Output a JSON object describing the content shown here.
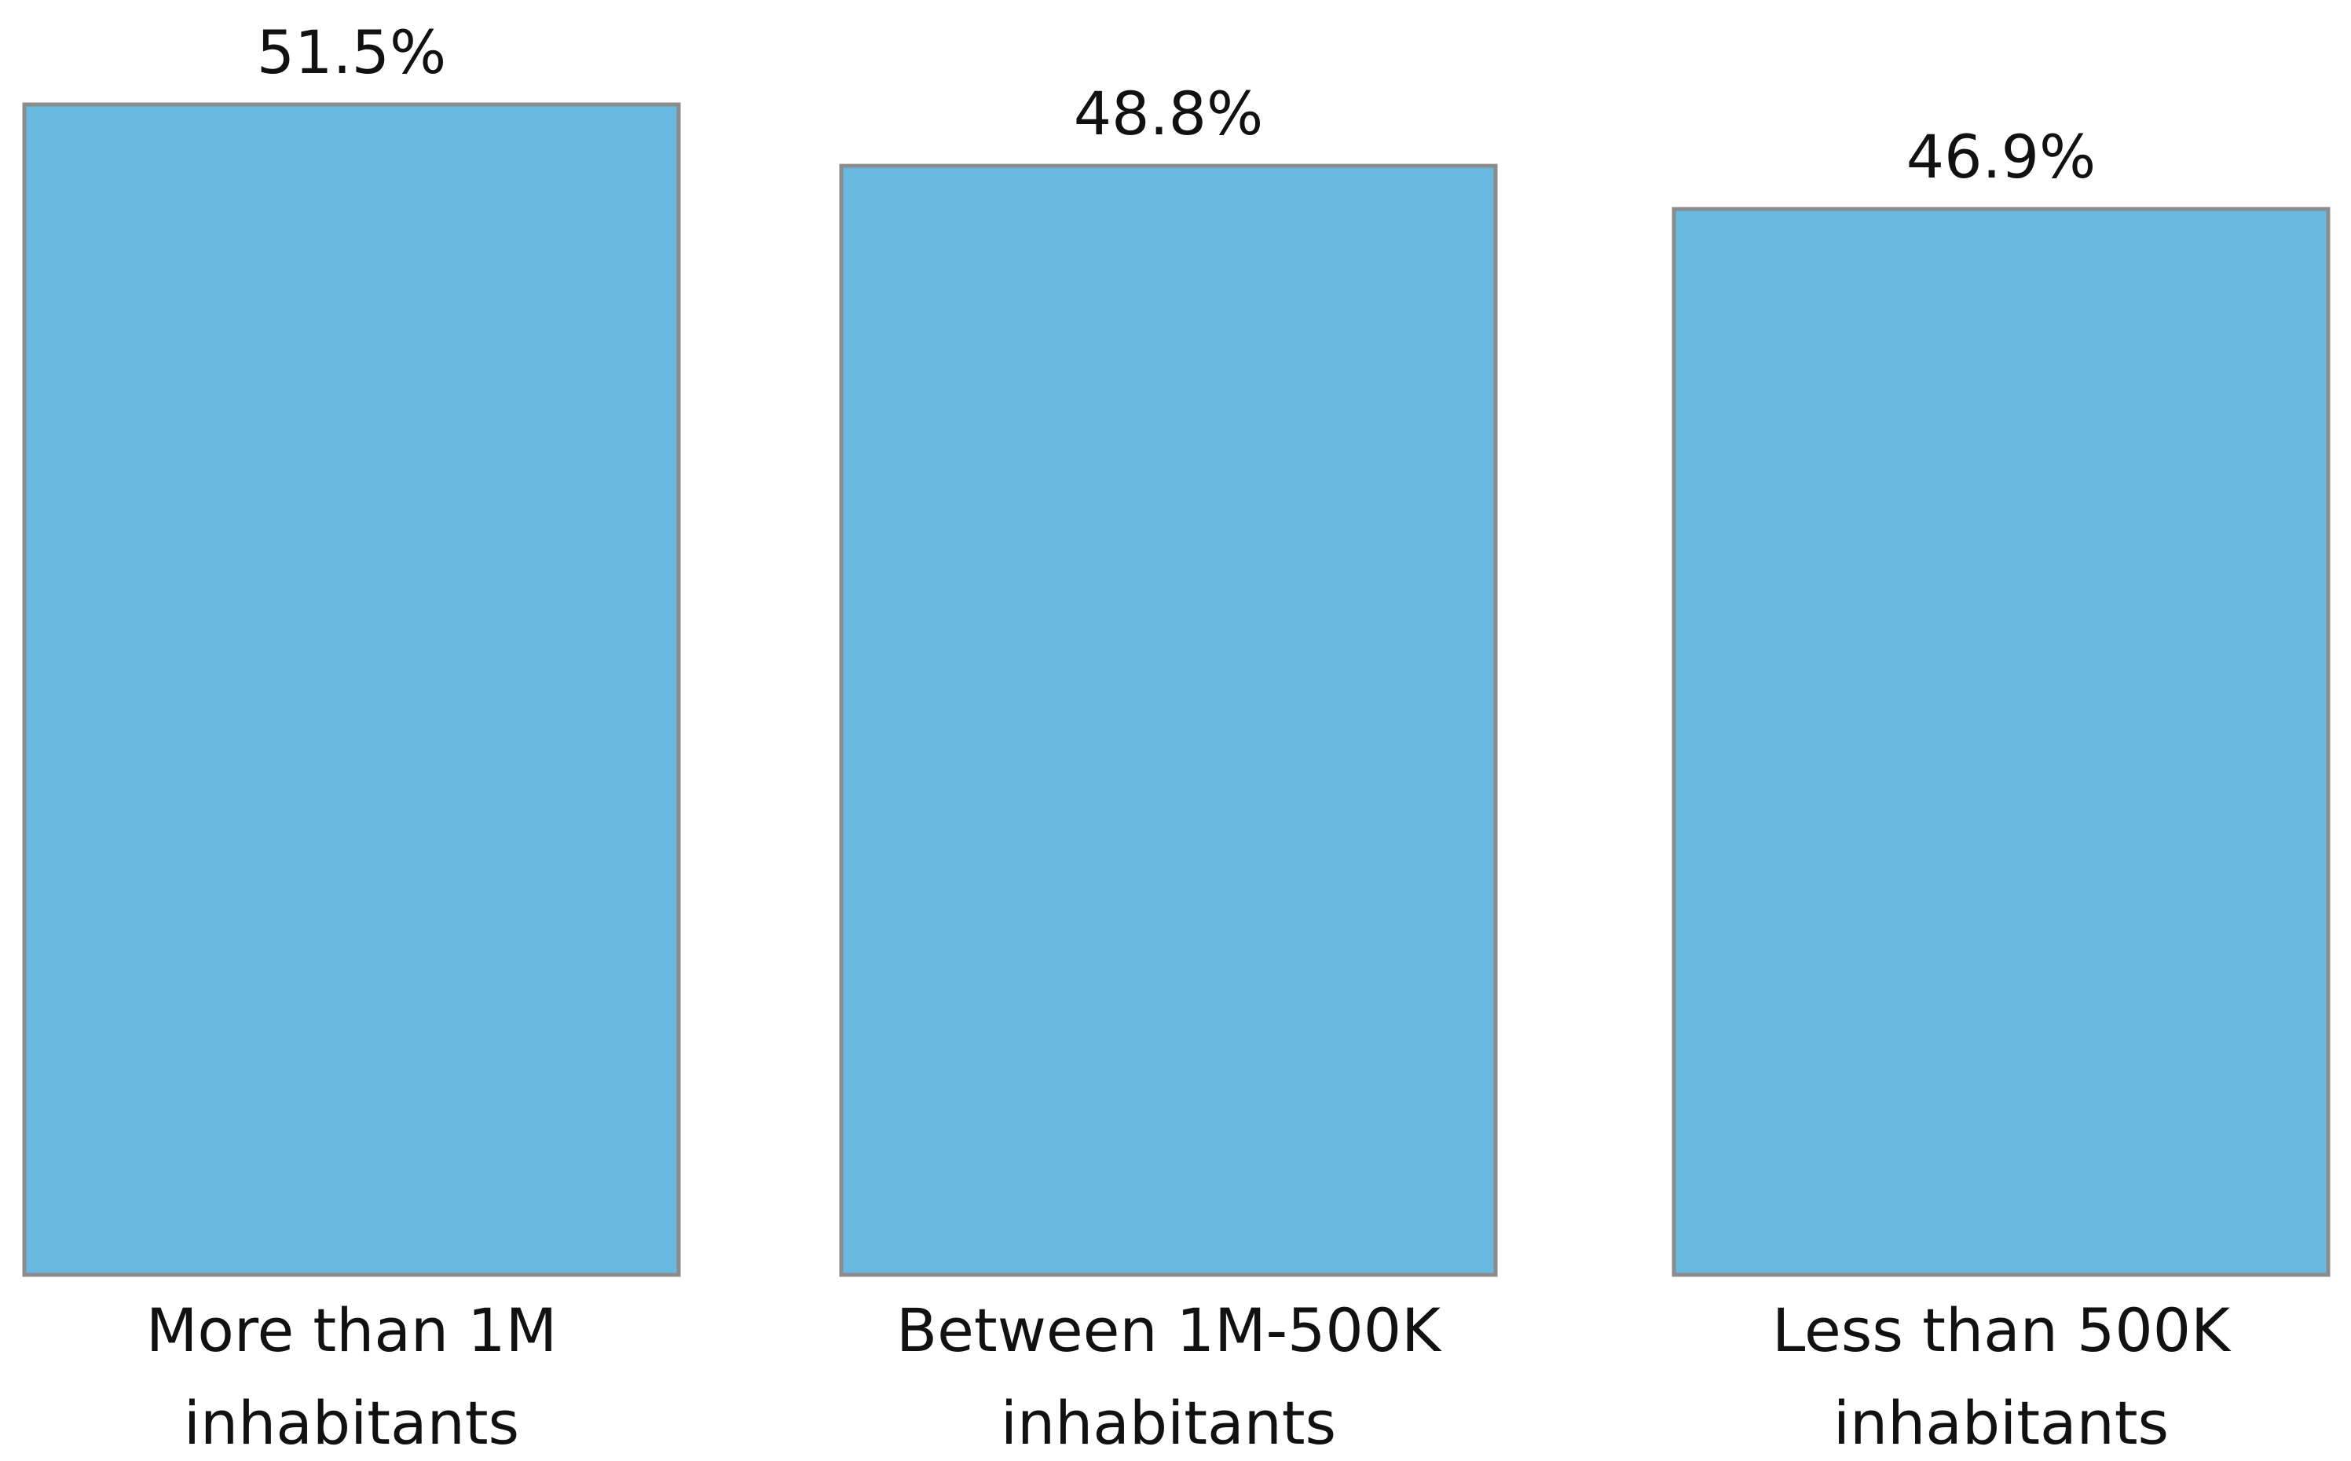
{
  "chart_data": {
    "type": "bar",
    "categories": [
      [
        "More than 1M",
        "inhabitants"
      ],
      [
        "Between 1M-500K",
        "inhabitants"
      ],
      [
        "Less than 500K",
        "inhabitants"
      ]
    ],
    "values": [
      51.5,
      48.8,
      46.9
    ],
    "value_labels": [
      "51.5%",
      "48.8%",
      "46.9%"
    ],
    "unit": "%",
    "title": "",
    "xlabel": "",
    "ylabel": "",
    "ylim": [
      0,
      51.5
    ],
    "grid": false,
    "legend": "none",
    "colors": {
      "bar_fill": "#68BAE1",
      "bar_stroke": "#8C8C8C",
      "text": "#111111"
    }
  }
}
